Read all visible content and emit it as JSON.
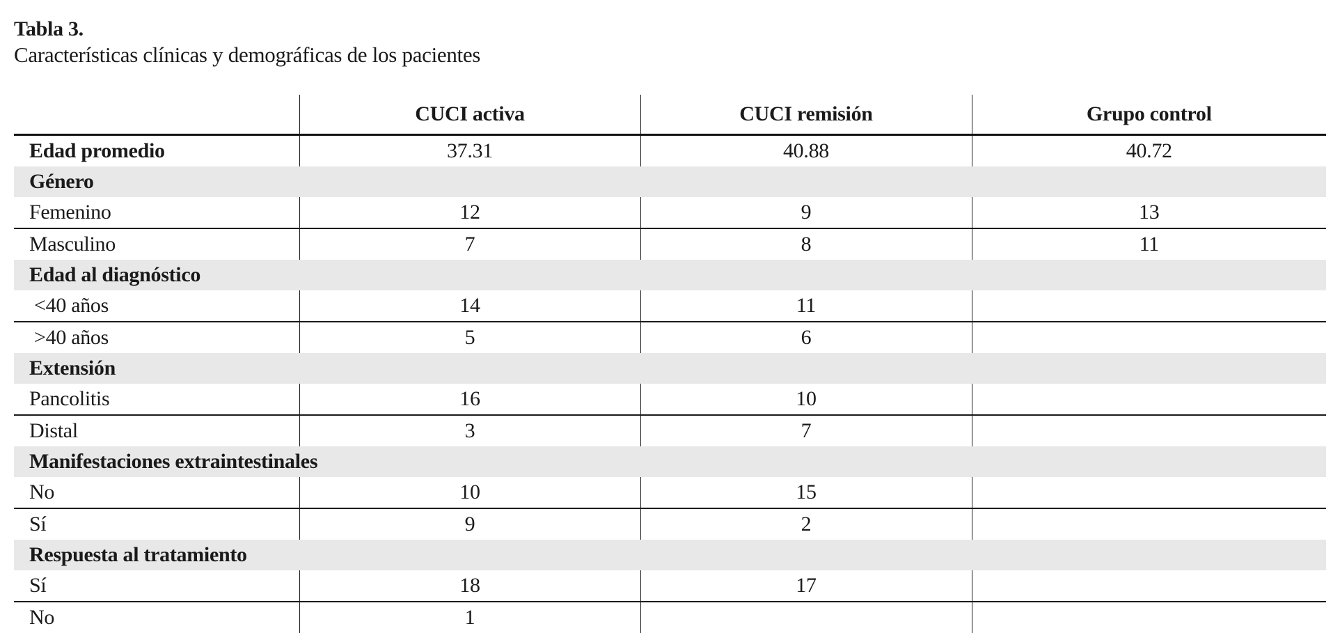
{
  "title": "Tabla 3.",
  "subtitle": "Características clínicas y demográficas de los pacientes",
  "table": {
    "columns": [
      "",
      "CUCI activa",
      "CUCI remisión",
      "Grupo control"
    ],
    "colors": {
      "section_bg": "#e8e8e8",
      "rule": "#1a1a1a",
      "text": "#1a1a1a"
    },
    "rows": [
      {
        "type": "data",
        "label": "Edad promedio",
        "bold": true,
        "values": [
          "37.31",
          "40.88",
          "40.72"
        ]
      },
      {
        "type": "section",
        "label": "Género"
      },
      {
        "type": "data",
        "label": "Femenino",
        "values": [
          "12",
          "9",
          "13"
        ]
      },
      {
        "type": "data",
        "label": "Masculino",
        "values": [
          "7",
          "8",
          "11"
        ]
      },
      {
        "type": "section",
        "label": "Edad al diagnóstico"
      },
      {
        "type": "data",
        "label": "<40 años",
        "values": [
          "14",
          "11",
          ""
        ]
      },
      {
        "type": "data",
        "label": ">40 años",
        "values": [
          "5",
          "6",
          ""
        ]
      },
      {
        "type": "section",
        "label": "Extensión"
      },
      {
        "type": "data",
        "label": "Pancolitis",
        "values": [
          "16",
          "10",
          ""
        ]
      },
      {
        "type": "data",
        "label": "Distal",
        "values": [
          "3",
          "7",
          ""
        ]
      },
      {
        "type": "section",
        "label": "Manifestaciones extraintestinales"
      },
      {
        "type": "data",
        "label": "No",
        "values": [
          "10",
          "15",
          ""
        ]
      },
      {
        "type": "data",
        "label": "Sí",
        "values": [
          "9",
          "2",
          ""
        ]
      },
      {
        "type": "section",
        "label": "Respuesta al tratamiento"
      },
      {
        "type": "data",
        "label": "Sí",
        "values": [
          "18",
          "17",
          ""
        ]
      },
      {
        "type": "data",
        "label": "No",
        "values": [
          "1",
          "",
          ""
        ]
      }
    ]
  }
}
